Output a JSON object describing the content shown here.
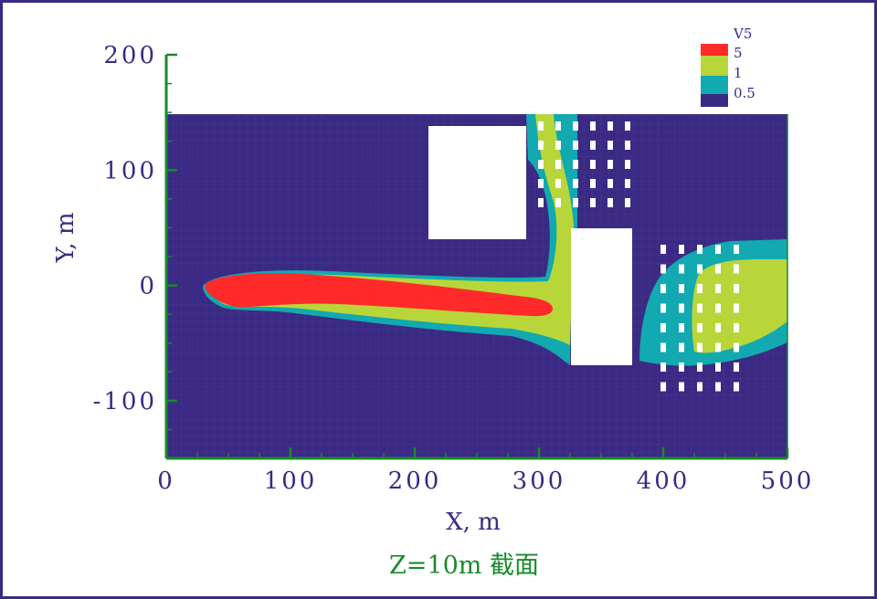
{
  "chart_data": {
    "type": "heatmap",
    "title": "Z=10m 截面",
    "xlabel": "X, m",
    "ylabel": "Y, m",
    "xlim": [
      0,
      500
    ],
    "ylim": [
      -150,
      200
    ],
    "domain_ylim": [
      -150,
      150
    ],
    "x_ticks": [
      "0",
      "100",
      "200",
      "300",
      "400",
      "500"
    ],
    "x_tick_values": [
      0,
      100,
      200,
      300,
      400,
      500
    ],
    "y_ticks": [
      "200",
      "100",
      "0",
      "-100"
    ],
    "y_tick_values": [
      200,
      100,
      0,
      -100
    ],
    "legend": {
      "title": "V5",
      "levels": [
        {
          "label": "5",
          "color": "#ff2a2a"
        },
        {
          "label": "1",
          "color": "#b8d63a"
        },
        {
          "label": "0.5",
          "color": "#12a9b0"
        },
        {
          "label": "",
          "color": "#3b2a83"
        }
      ]
    },
    "buildings": [
      {
        "x0": 210,
        "x1": 290,
        "y0": 40,
        "y1": 140
      },
      {
        "x0": 325,
        "x1": 375,
        "y0": -70,
        "y1": 50
      }
    ],
    "colors": {
      "background": "#3b2a83",
      "axis": "#1a8a2c",
      "frame": "#3b2a83",
      "building": "#ffffff"
    }
  }
}
